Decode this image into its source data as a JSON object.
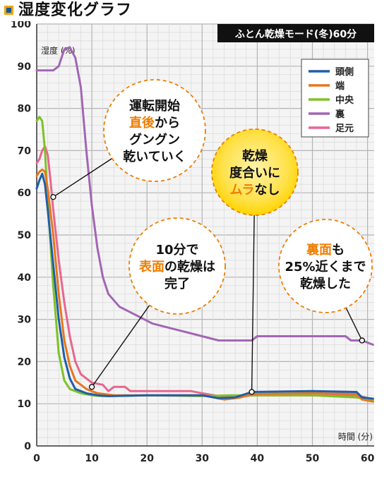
{
  "title": "湿度変化グラフ",
  "subtitle": "ふとん乾燥モード(冬)60分",
  "chart_data": {
    "type": "line",
    "title": "湿度変化グラフ",
    "subtitle": "ふとん乾燥モード(冬)60分",
    "xlabel": "時間 (分)",
    "ylabel": "湿度 (%)",
    "xlim": [
      0,
      60
    ],
    "ylim": [
      0,
      100
    ],
    "xticks": [
      0,
      10,
      20,
      30,
      40,
      50,
      60
    ],
    "yticks": [
      0,
      10,
      20,
      30,
      40,
      50,
      60,
      70,
      80,
      90,
      100
    ],
    "grid": true,
    "legend_position": "top-right",
    "series": [
      {
        "name": "頭側",
        "color": "#1f5fa8",
        "points": [
          [
            0,
            61
          ],
          [
            0.5,
            63
          ],
          [
            1,
            64.5
          ],
          [
            1.5,
            62
          ],
          [
            2,
            56
          ],
          [
            3,
            43
          ],
          [
            4,
            30
          ],
          [
            5,
            21
          ],
          [
            6,
            16
          ],
          [
            7,
            13.5
          ],
          [
            9,
            12.5
          ],
          [
            11,
            12
          ],
          [
            13,
            11.8
          ],
          [
            20,
            12
          ],
          [
            30,
            12
          ],
          [
            33,
            11.3
          ],
          [
            36,
            11.5
          ],
          [
            39,
            12.8
          ],
          [
            50,
            13
          ],
          [
            58,
            12.8
          ],
          [
            59,
            11.5
          ],
          [
            61,
            11.2
          ]
        ]
      },
      {
        "name": "端",
        "color": "#e8761e",
        "points": [
          [
            0,
            64
          ],
          [
            0.5,
            65
          ],
          [
            1,
            65.5
          ],
          [
            1.5,
            65
          ],
          [
            2,
            61
          ],
          [
            3,
            50
          ],
          [
            4,
            36
          ],
          [
            5,
            25
          ],
          [
            6,
            19
          ],
          [
            7,
            15.5
          ],
          [
            9,
            13.5
          ],
          [
            11,
            12.5
          ],
          [
            14,
            12
          ],
          [
            20,
            12
          ],
          [
            30,
            12
          ],
          [
            34,
            11
          ],
          [
            37,
            11.5
          ],
          [
            39,
            12.3
          ],
          [
            50,
            12.5
          ],
          [
            58,
            12.3
          ],
          [
            59,
            11
          ],
          [
            61,
            10.5
          ]
        ]
      },
      {
        "name": "中央",
        "color": "#7ec225",
        "points": [
          [
            0,
            77
          ],
          [
            0.5,
            78
          ],
          [
            1,
            77
          ],
          [
            1.5,
            70
          ],
          [
            2,
            58
          ],
          [
            3,
            38
          ],
          [
            4,
            22
          ],
          [
            5,
            15.5
          ],
          [
            6,
            13.5
          ],
          [
            8,
            12.5
          ],
          [
            10,
            12
          ],
          [
            12,
            11.8
          ],
          [
            20,
            12
          ],
          [
            30,
            11.8
          ],
          [
            35,
            12
          ],
          [
            38,
            12
          ],
          [
            40,
            12
          ],
          [
            50,
            12
          ],
          [
            58,
            11.5
          ],
          [
            61,
            10.8
          ]
        ]
      },
      {
        "name": "裏",
        "color": "#a266b4",
        "points": [
          [
            0,
            89
          ],
          [
            3,
            89
          ],
          [
            4,
            90
          ],
          [
            5,
            94
          ],
          [
            6,
            94.5
          ],
          [
            7,
            92
          ],
          [
            8,
            85
          ],
          [
            9,
            70
          ],
          [
            10,
            57
          ],
          [
            11,
            47
          ],
          [
            12,
            40
          ],
          [
            13,
            36
          ],
          [
            15,
            33
          ],
          [
            18,
            31
          ],
          [
            21,
            29
          ],
          [
            24,
            28
          ],
          [
            27,
            27
          ],
          [
            30,
            26
          ],
          [
            33,
            25
          ],
          [
            36,
            25
          ],
          [
            39,
            25
          ],
          [
            40,
            26
          ],
          [
            45,
            26
          ],
          [
            52,
            26
          ],
          [
            56,
            26
          ],
          [
            57,
            25
          ],
          [
            59,
            25
          ],
          [
            61,
            24
          ]
        ]
      },
      {
        "name": "足元",
        "color": "#e8668e",
        "points": [
          [
            0,
            67
          ],
          [
            0.5,
            68
          ],
          [
            1,
            70
          ],
          [
            1.5,
            71
          ],
          [
            2,
            69
          ],
          [
            2.5,
            63
          ],
          [
            3,
            56
          ],
          [
            4,
            44
          ],
          [
            5,
            34
          ],
          [
            6,
            26
          ],
          [
            7,
            20
          ],
          [
            8,
            17
          ],
          [
            10,
            15
          ],
          [
            12,
            14.5
          ],
          [
            13,
            13
          ],
          [
            14,
            14
          ],
          [
            16,
            14
          ],
          [
            17,
            13
          ],
          [
            20,
            13
          ],
          [
            28,
            13
          ],
          [
            30,
            12.5
          ],
          [
            33,
            11.8
          ],
          [
            36,
            11.5
          ],
          [
            39,
            12
          ],
          [
            50,
            12
          ],
          [
            58,
            12
          ],
          [
            61,
            11
          ]
        ]
      }
    ],
    "annotations": [
      {
        "lines": [
          [
            {
              "t": "運転開始"
            }
          ],
          [
            {
              "t": "直後",
              "hl": "#ef7d00"
            },
            {
              "t": "から"
            }
          ],
          [
            {
              "t": "グングン"
            }
          ],
          [
            {
              "t": "乾いていく"
            }
          ]
        ],
        "style": "white",
        "point": [
          3,
          59
        ]
      },
      {
        "lines": [
          [
            {
              "t": "10分で"
            }
          ],
          [
            {
              "t": "表面",
              "hl": "#ef7d00"
            },
            {
              "t": "の乾燥は"
            }
          ],
          [
            {
              "t": "完了"
            }
          ]
        ],
        "style": "white",
        "point": [
          10,
          14
        ]
      },
      {
        "lines": [
          [
            {
              "t": "乾燥"
            }
          ],
          [
            {
              "t": "度合いに"
            }
          ],
          [
            {
              "t": "ムラ",
              "hl": "#ef7d00"
            },
            {
              "t": "なし"
            }
          ]
        ],
        "style": "yellow",
        "point": [
          39,
          12.8
        ]
      },
      {
        "lines": [
          [
            {
              "t": "裏面",
              "hl": "#ef7d00"
            },
            {
              "t": "も"
            }
          ],
          [
            {
              "t": "25%近くまで"
            }
          ],
          [
            {
              "t": "乾燥した"
            }
          ]
        ],
        "style": "white",
        "point": [
          59,
          25
        ]
      }
    ]
  }
}
